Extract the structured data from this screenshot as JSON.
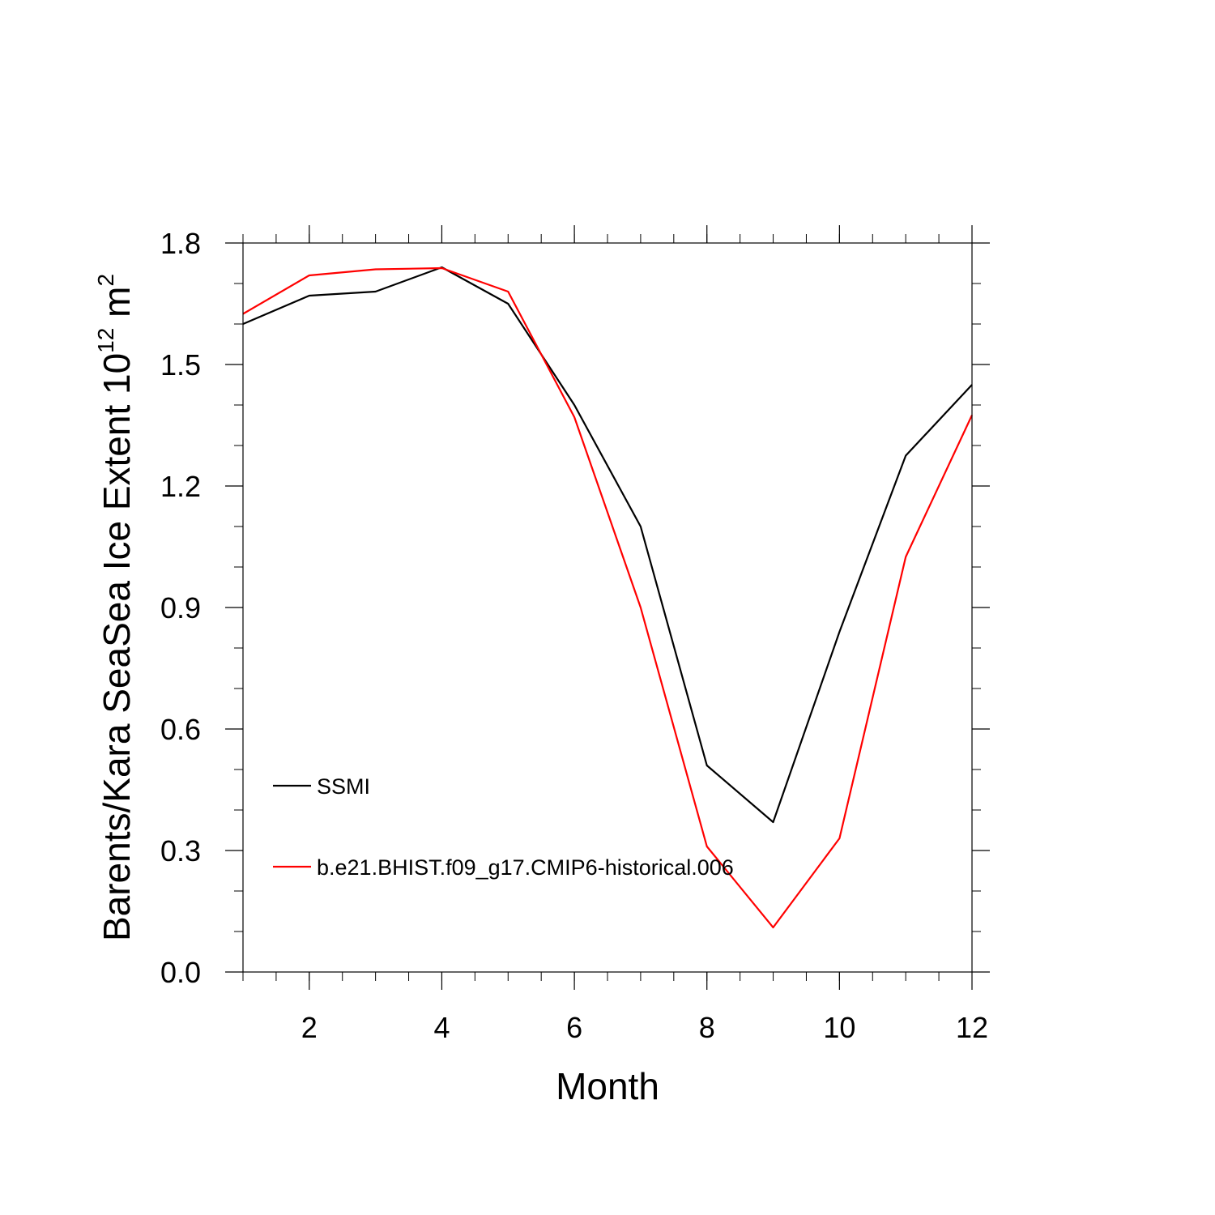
{
  "chart_data": {
    "type": "line",
    "title": "",
    "xlabel": "Month",
    "ylabel_main": "Barents/Kara SeaSea Ice Extent 10",
    "ylabel_sup": "12",
    "ylabel_unit": " m",
    "ylabel_sup2": "2",
    "xlim": [
      1,
      12
    ],
    "ylim": [
      0.0,
      1.8
    ],
    "x_ticks": [
      2,
      4,
      6,
      8,
      10,
      12
    ],
    "y_ticks": [
      "0.0",
      "0.3",
      "0.6",
      "0.9",
      "1.2",
      "1.5",
      "1.8"
    ],
    "x": [
      1,
      2,
      3,
      4,
      5,
      6,
      7,
      8,
      9,
      10,
      11,
      12
    ],
    "grid": false,
    "legend_position": "lower-left",
    "series": [
      {
        "name": "SSMI",
        "color": "#000000",
        "values": [
          1.6,
          1.67,
          1.68,
          1.74,
          1.65,
          1.4,
          1.1,
          0.51,
          0.37,
          0.84,
          1.275,
          1.45
        ]
      },
      {
        "name": "b.e21.BHIST.f09_g17.CMIP6-historical.006",
        "color": "#ff0000",
        "values": [
          1.625,
          1.72,
          1.735,
          1.738,
          1.68,
          1.37,
          0.9,
          0.31,
          0.11,
          0.33,
          1.025,
          1.375
        ]
      }
    ]
  }
}
